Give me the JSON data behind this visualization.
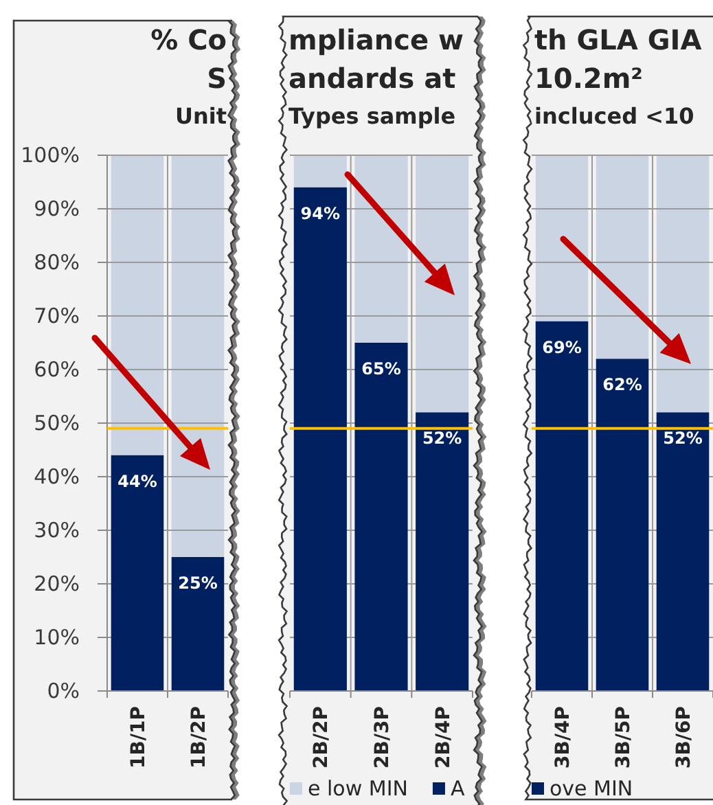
{
  "chart_data": [
    {
      "type": "bar",
      "title": "% Co\nS",
      "subtitle": "Unit",
      "categories": [
        "1B/1P",
        "1B/2P"
      ],
      "stacked": true,
      "series": [
        {
          "color": "#002060",
          "values": [
            44,
            25
          ],
          "value_labels": [
            "44%",
            "25%"
          ]
        },
        {
          "color": "#cad4e2",
          "values": [
            56,
            75
          ]
        }
      ],
      "ylim": [
        0,
        100
      ],
      "yticks": [
        {
          "value": 0,
          "label": "0%"
        },
        {
          "value": 10,
          "label": "10%"
        },
        {
          "value": 20,
          "label": "20%"
        },
        {
          "value": 30,
          "label": "30%"
        },
        {
          "value": 40,
          "label": "40%"
        },
        {
          "value": 50,
          "label": "50%"
        },
        {
          "value": 60,
          "label": "60%"
        },
        {
          "value": 70,
          "label": "70%"
        },
        {
          "value": 80,
          "label": "80%"
        },
        {
          "value": 90,
          "label": "90%"
        },
        {
          "value": 100,
          "label": "100%"
        }
      ],
      "grid": true,
      "ref_lines": [
        {
          "axis": "y",
          "value": 49,
          "color": "#ffc000"
        }
      ]
    },
    {
      "type": "bar",
      "title": "mpliance w\nandards at",
      "subtitle": "Types sample",
      "categories": [
        "2B/2P",
        "2B/3P",
        "2B/4P"
      ],
      "stacked": true,
      "series": [
        {
          "name": "A",
          "color": "#002060",
          "values": [
            94,
            65,
            52
          ],
          "value_labels": [
            "94%",
            "65%",
            "52%"
          ]
        },
        {
          "name": "e low MIN",
          "color": "#cad4e2",
          "values": [
            6,
            35,
            48
          ]
        }
      ],
      "ylim": [
        0,
        100
      ],
      "yticks": [
        {
          "value": 0,
          "label": null
        },
        {
          "value": 10,
          "label": null
        },
        {
          "value": 20,
          "label": null
        },
        {
          "value": 30,
          "label": null
        },
        {
          "value": 40,
          "label": null
        },
        {
          "value": 50,
          "label": null
        },
        {
          "value": 60,
          "label": null
        },
        {
          "value": 70,
          "label": null
        },
        {
          "value": 80,
          "label": null
        },
        {
          "value": 90,
          "label": null
        },
        {
          "value": 100,
          "label": null
        }
      ],
      "tick_labels": "x",
      "grid": true,
      "legend": "bottom",
      "ref_lines": [
        {
          "axis": "y",
          "value": 49,
          "color": "#ffc000"
        }
      ]
    },
    {
      "type": "bar",
      "title": "th GLA GIA\n10.2m²",
      "subtitle": "incluced <10",
      "categories": [
        "3B/4P",
        "3B/5P",
        "3B/6P"
      ],
      "stacked": true,
      "series": [
        {
          "name": "ove MIN",
          "color": "#002060",
          "values": [
            69,
            62,
            52
          ],
          "value_labels": [
            "69%",
            "62%",
            "52%"
          ]
        },
        {
          "color": "#cad4e2",
          "values": [
            31,
            38,
            48
          ]
        }
      ],
      "ylim": [
        0,
        100
      ],
      "yticks": [
        {
          "value": 0,
          "label": null
        },
        {
          "value": 10,
          "label": null
        },
        {
          "value": 20,
          "label": null
        },
        {
          "value": 30,
          "label": null
        },
        {
          "value": 40,
          "label": null
        },
        {
          "value": 50,
          "label": null
        },
        {
          "value": 60,
          "label": null
        },
        {
          "value": 70,
          "label": null
        },
        {
          "value": 80,
          "label": null
        },
        {
          "value": 90,
          "label": null
        },
        {
          "value": 100,
          "label": null
        }
      ],
      "tick_labels": "x",
      "grid": true,
      "legend": "bottom",
      "ref_lines": [
        {
          "axis": "y",
          "value": 49,
          "color": "#ffc000"
        }
      ]
    }
  ]
}
